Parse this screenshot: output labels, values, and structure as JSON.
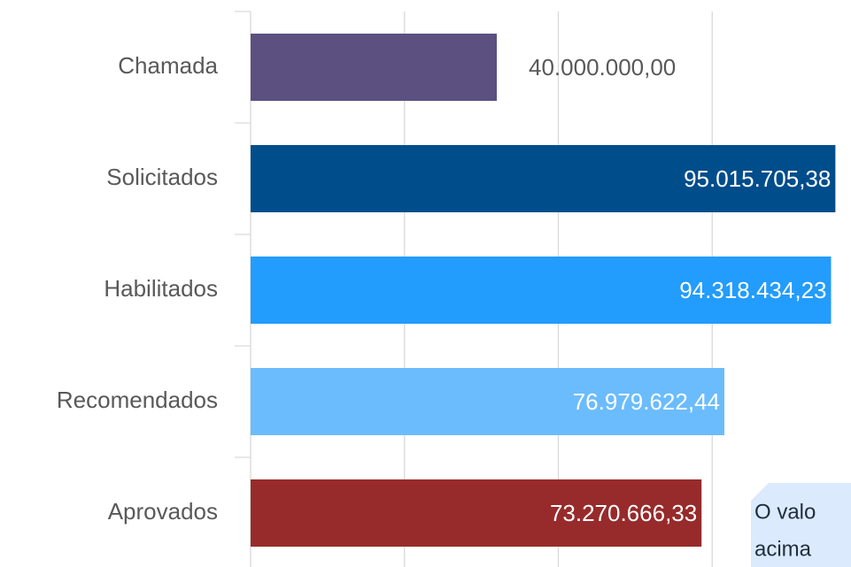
{
  "chart_data": {
    "type": "bar",
    "orientation": "horizontal",
    "categories": [
      "Chamada",
      "Solicitados",
      "Habilitados",
      "Recomendados",
      "Aprovados"
    ],
    "values": [
      40000000,
      95015705.38,
      94318434.23,
      76979622.44,
      73270666.33
    ],
    "value_labels": [
      "40.000.000,00",
      "95.015.705,38",
      "94.318.434,23",
      "76.979.622,44",
      "73.270.666,33"
    ],
    "colors": [
      "#5b5080",
      "#004d8c",
      "#229cfd",
      "#6bbcfc",
      "#972b2b"
    ],
    "xlim": [
      0,
      100000000
    ],
    "xticks": [
      0,
      25000000,
      50000000,
      75000000
    ],
    "grid": true,
    "annotation": [
      "O valo",
      "acima"
    ]
  }
}
